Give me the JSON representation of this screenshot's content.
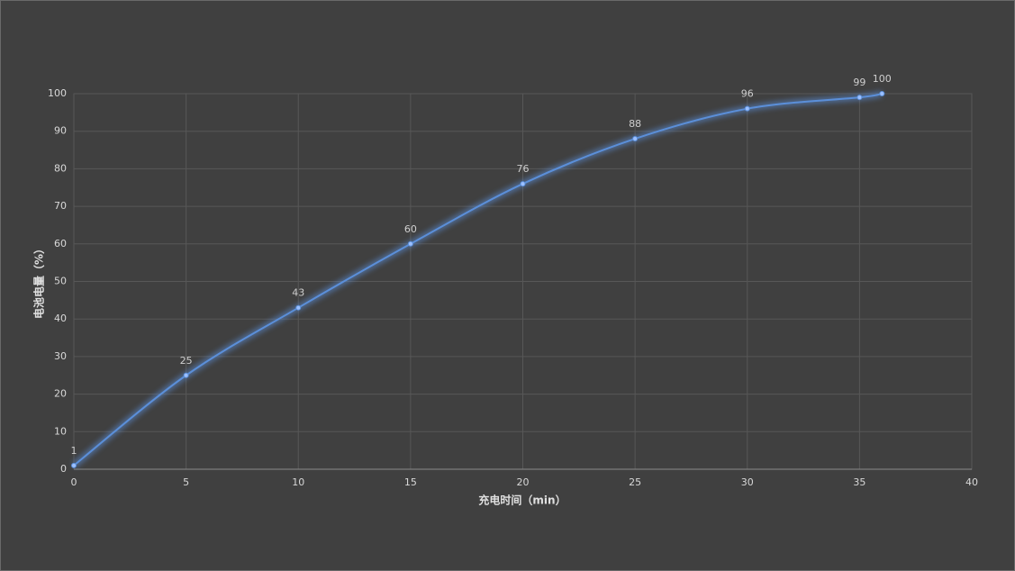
{
  "chart_data": {
    "type": "line",
    "x_label": "充电时间（min）",
    "y_label": "电池电量（%）",
    "x": [
      0,
      5,
      10,
      15,
      20,
      25,
      30,
      35,
      36
    ],
    "series": [
      {
        "name": "电池电量",
        "color": "#5b8fd9",
        "values": [
          1,
          25,
          43,
          60,
          76,
          88,
          96,
          99,
          100
        ]
      }
    ],
    "xlim": [
      0,
      40
    ],
    "xticks": [
      0,
      5,
      10,
      15,
      20,
      25,
      30,
      35,
      40
    ],
    "ylim": [
      0,
      100
    ],
    "yticks": [
      0,
      10,
      20,
      30,
      40,
      50,
      60,
      70,
      80,
      90,
      100
    ],
    "grid": true,
    "smooth": true,
    "data_labels": true
  }
}
